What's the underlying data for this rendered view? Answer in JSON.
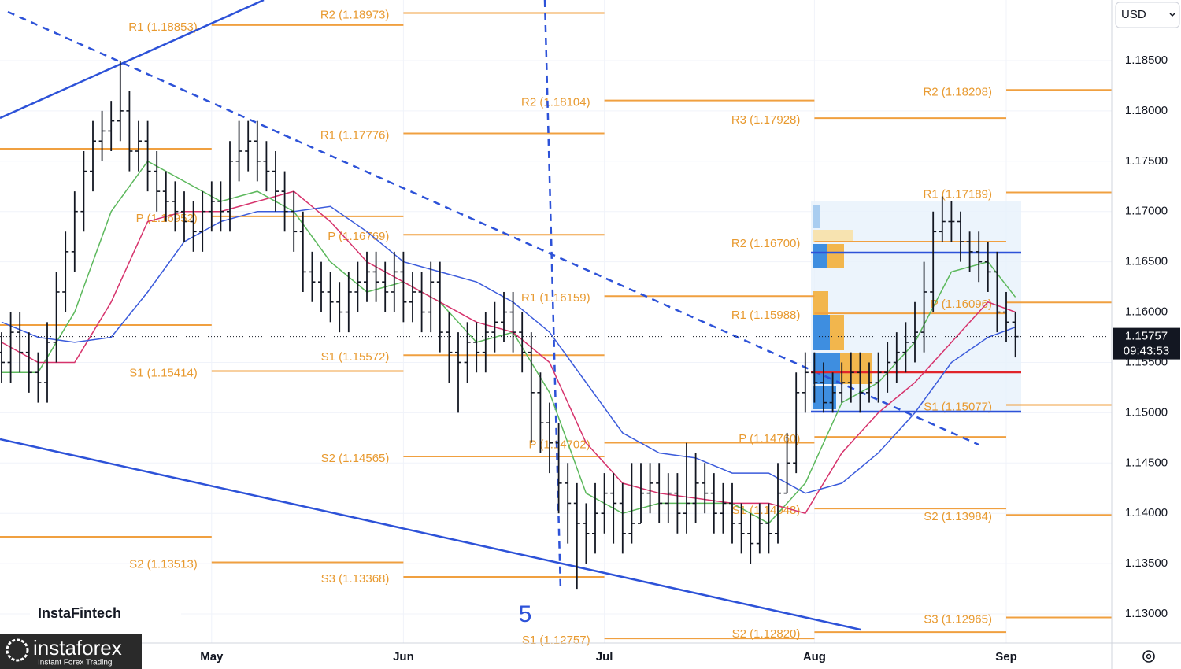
{
  "header": {
    "currency": "USD"
  },
  "branding": {
    "watermark": "InstaFintech",
    "logo": "instaforex",
    "tagline": "Instant Forex Trading"
  },
  "chart_data": {
    "type": "ohlc",
    "categories": [
      null,
      null,
      null,
      null,
      null,
      null,
      null,
      null,
      null,
      null,
      null,
      null,
      null,
      null,
      null,
      null,
      null,
      null,
      null,
      null,
      null,
      null,
      null,
      "May",
      null,
      null,
      null,
      null,
      null,
      null,
      null,
      null,
      null,
      null,
      null,
      null,
      null,
      null,
      null,
      null,
      null,
      null,
      null,
      null,
      "Jun",
      null,
      null,
      null,
      null,
      null,
      null,
      null,
      null,
      null,
      null,
      null,
      null,
      null,
      null,
      null,
      null,
      null,
      null,
      null,
      null,
      null,
      "Jul",
      null,
      null,
      null,
      null,
      null,
      null,
      null,
      null,
      null,
      null,
      null,
      null,
      null,
      null,
      null,
      null,
      null,
      null,
      null,
      null,
      null,
      null,
      "Aug",
      null,
      null,
      null,
      null,
      null,
      null,
      null,
      null,
      null,
      null,
      null,
      null,
      null,
      null,
      null,
      null,
      null,
      null,
      null,
      null,
      "Sep",
      null
    ],
    "open": [
      1.156,
      1.155,
      1.158,
      1.156,
      1.154,
      1.153,
      1.157,
      1.162,
      1.166,
      1.17,
      1.174,
      1.177,
      1.178,
      1.179,
      1.18,
      1.176,
      1.177,
      1.174,
      1.172,
      1.171,
      1.17,
      1.169,
      1.168,
      1.17,
      1.171,
      1.17,
      1.175,
      1.176,
      1.177,
      1.175,
      1.174,
      1.172,
      1.17,
      1.168,
      1.164,
      1.163,
      1.162,
      1.161,
      1.16,
      1.162,
      1.163,
      1.164,
      1.163,
      1.162,
      1.164,
      1.161,
      1.162,
      1.16,
      1.163,
      1.158,
      1.156,
      1.155,
      1.157,
      1.156,
      1.158,
      1.159,
      1.16,
      1.158,
      1.156,
      1.152,
      1.149,
      1.147,
      1.143,
      1.141,
      1.139,
      1.138,
      1.14,
      1.142,
      1.141,
      1.138,
      1.139,
      1.142,
      1.143,
      1.141,
      1.142,
      1.14,
      1.141,
      1.143,
      1.142,
      1.14,
      1.141,
      1.139,
      1.138,
      1.137,
      1.139,
      1.138,
      1.142,
      1.145,
      1.152,
      1.154,
      1.153,
      1.151,
      1.152,
      1.153,
      1.154,
      1.152,
      1.153,
      1.154,
      1.155,
      1.156,
      1.157,
      1.158,
      1.162,
      1.168,
      1.169,
      1.169,
      1.167,
      1.166,
      1.165,
      1.164,
      1.16,
      1.159
    ],
    "high": [
      1.158,
      1.16,
      1.16,
      1.158,
      1.156,
      1.159,
      1.164,
      1.168,
      1.172,
      1.176,
      1.179,
      1.18,
      1.181,
      1.185,
      1.182,
      1.179,
      1.179,
      1.176,
      1.174,
      1.173,
      1.172,
      1.171,
      1.172,
      1.173,
      1.173,
      1.177,
      1.179,
      1.179,
      1.179,
      1.177,
      1.176,
      1.174,
      1.172,
      1.17,
      1.166,
      1.165,
      1.164,
      1.163,
      1.164,
      1.165,
      1.166,
      1.166,
      1.165,
      1.166,
      1.166,
      1.164,
      1.164,
      1.165,
      1.165,
      1.16,
      1.158,
      1.159,
      1.159,
      1.16,
      1.161,
      1.162,
      1.162,
      1.16,
      1.158,
      1.154,
      1.151,
      1.149,
      1.145,
      1.143,
      1.141,
      1.143,
      1.144,
      1.144,
      1.143,
      1.145,
      1.145,
      1.145,
      1.145,
      1.144,
      1.144,
      1.147,
      1.146,
      1.145,
      1.144,
      1.143,
      1.143,
      1.141,
      1.14,
      1.141,
      1.141,
      1.145,
      1.148,
      1.154,
      1.156,
      1.156,
      1.155,
      1.154,
      1.155,
      1.156,
      1.156,
      1.155,
      1.156,
      1.157,
      1.158,
      1.159,
      1.161,
      1.165,
      1.17,
      1.1715,
      1.171,
      1.17,
      1.168,
      1.168,
      1.167,
      1.166,
      1.162,
      1.16
    ],
    "low": [
      1.153,
      1.153,
      1.154,
      1.152,
      1.151,
      1.151,
      1.155,
      1.16,
      1.164,
      1.168,
      1.172,
      1.175,
      1.176,
      1.177,
      1.174,
      1.174,
      1.172,
      1.17,
      1.169,
      1.168,
      1.167,
      1.166,
      1.166,
      1.168,
      1.168,
      1.168,
      1.173,
      1.174,
      1.173,
      1.172,
      1.17,
      1.168,
      1.166,
      1.162,
      1.161,
      1.16,
      1.159,
      1.158,
      1.158,
      1.16,
      1.161,
      1.161,
      1.16,
      1.16,
      1.159,
      1.159,
      1.158,
      1.158,
      1.156,
      1.153,
      1.15,
      1.153,
      1.154,
      1.154,
      1.156,
      1.157,
      1.156,
      1.154,
      1.147,
      1.146,
      1.144,
      1.14,
      1.137,
      1.1325,
      1.135,
      1.136,
      1.138,
      1.137,
      1.136,
      1.137,
      1.139,
      1.14,
      1.139,
      1.139,
      1.138,
      1.138,
      1.139,
      1.14,
      1.138,
      1.138,
      1.137,
      1.136,
      1.135,
      1.136,
      1.136,
      1.137,
      1.142,
      1.144,
      1.15,
      1.151,
      1.15,
      1.15,
      1.151,
      1.151,
      1.15,
      1.151,
      1.151,
      1.152,
      1.153,
      1.154,
      1.155,
      1.156,
      1.16,
      1.167,
      1.167,
      1.165,
      1.164,
      1.163,
      1.162,
      1.158,
      1.157,
      1.1555
    ],
    "close": [
      1.155,
      1.158,
      1.156,
      1.154,
      1.153,
      1.157,
      1.162,
      1.166,
      1.17,
      1.174,
      1.177,
      1.178,
      1.179,
      1.18,
      1.176,
      1.177,
      1.174,
      1.172,
      1.171,
      1.17,
      1.169,
      1.168,
      1.17,
      1.171,
      1.17,
      1.175,
      1.176,
      1.177,
      1.175,
      1.174,
      1.172,
      1.17,
      1.168,
      1.164,
      1.163,
      1.162,
      1.161,
      1.16,
      1.162,
      1.163,
      1.164,
      1.163,
      1.162,
      1.164,
      1.161,
      1.162,
      1.16,
      1.163,
      1.158,
      1.156,
      1.155,
      1.157,
      1.156,
      1.158,
      1.159,
      1.16,
      1.158,
      1.156,
      1.152,
      1.149,
      1.147,
      1.143,
      1.141,
      1.139,
      1.138,
      1.14,
      1.142,
      1.141,
      1.138,
      1.139,
      1.142,
      1.143,
      1.141,
      1.142,
      1.14,
      1.141,
      1.143,
      1.142,
      1.14,
      1.141,
      1.139,
      1.138,
      1.137,
      1.139,
      1.138,
      1.142,
      1.145,
      1.152,
      1.154,
      1.153,
      1.151,
      1.152,
      1.153,
      1.154,
      1.152,
      1.153,
      1.154,
      1.155,
      1.156,
      1.157,
      1.158,
      1.162,
      1.168,
      1.169,
      1.169,
      1.167,
      1.166,
      1.165,
      1.164,
      1.16,
      1.159,
      1.15757
    ],
    "bar_color": "#131722",
    "countdown": "09:43:53",
    "ma_x": [
      0,
      4,
      8,
      12,
      16,
      20,
      24,
      28,
      32,
      36,
      40,
      44,
      48,
      52,
      56,
      60,
      64,
      68,
      72,
      76,
      80,
      84,
      88,
      92,
      96,
      100,
      104,
      108,
      111
    ],
    "moving_averages": [
      {
        "color": "#5cb85c",
        "values": [
          1.154,
          1.154,
          1.16,
          1.17,
          1.175,
          1.173,
          1.171,
          1.172,
          1.17,
          1.165,
          1.162,
          1.163,
          1.161,
          1.157,
          1.158,
          1.152,
          1.142,
          1.14,
          1.141,
          1.141,
          1.141,
          1.139,
          1.143,
          1.151,
          1.153,
          1.157,
          1.164,
          1.165,
          1.1615
        ]
      },
      {
        "color": "#d6336c",
        "values": [
          1.157,
          1.155,
          1.155,
          1.161,
          1.169,
          1.17,
          1.17,
          1.171,
          1.172,
          1.169,
          1.165,
          1.163,
          1.161,
          1.159,
          1.158,
          1.155,
          1.147,
          1.143,
          1.142,
          1.1415,
          1.141,
          1.141,
          1.14,
          1.146,
          1.15,
          1.153,
          1.157,
          1.161,
          1.16
        ]
      },
      {
        "color": "#3b5bdb",
        "values": [
          1.159,
          1.1575,
          1.157,
          1.1575,
          1.162,
          1.167,
          1.169,
          1.17,
          1.17,
          1.1705,
          1.168,
          1.165,
          1.164,
          1.163,
          1.161,
          1.158,
          1.153,
          1.148,
          1.146,
          1.1455,
          1.144,
          1.144,
          1.142,
          1.143,
          1.146,
          1.15,
          1.155,
          1.1575,
          1.1585
        ]
      }
    ],
    "pivot_color": "#f0a040",
    "pivot_periods": [
      {
        "levels": [
          {
            "value": 1.17624
          },
          {
            "value": 1.15871
          },
          {
            "value": 1.13767
          }
        ]
      },
      {
        "levels": [
          {
            "label": "R1 (1.18853)",
            "value": 1.18853
          },
          {
            "label": "P (1.16952)",
            "value": 1.16952
          },
          {
            "label": "S1 (1.15414)",
            "value": 1.15414
          },
          {
            "label": "S2 (1.13513)",
            "value": 1.13513
          }
        ]
      },
      {
        "levels": [
          {
            "label": "R2 (1.18973)",
            "value": 1.18973
          },
          {
            "label": "R1 (1.17776)",
            "value": 1.17776
          },
          {
            "label": "P (1.16769)",
            "value": 1.16769
          },
          {
            "label": "S1 (1.15572)",
            "value": 1.15572
          },
          {
            "label": "S2 (1.14565)",
            "value": 1.14565
          },
          {
            "label": "S3 (1.13368)",
            "value": 1.13368
          }
        ]
      },
      {
        "levels": [
          {
            "label": "R2 (1.18104)",
            "value": 1.18104
          },
          {
            "label": "R1 (1.16159)",
            "value": 1.16159
          },
          {
            "label": "P (1.14702)",
            "value": 1.14702
          },
          {
            "label": "S1 (1.12757)",
            "value": 1.12757
          }
        ]
      },
      {
        "levels": [
          {
            "label": "R3 (1.17928)",
            "value": 1.17928
          },
          {
            "label": "R2 (1.16700)",
            "value": 1.167
          },
          {
            "label": "R1 (1.15988)",
            "value": 1.15988
          },
          {
            "label": "P (1.14760)",
            "value": 1.1476
          },
          {
            "label": "S1 (1.14048)",
            "value": 1.14048
          },
          {
            "label": "S2 (1.12820)",
            "value": 1.1282
          }
        ]
      },
      {
        "levels": [
          {
            "label": "R2 (1.18208)",
            "value": 1.18208
          },
          {
            "label": "R1 (1.17189)",
            "value": 1.17189
          },
          {
            "label": "P (1.16096)",
            "value": 1.16096
          },
          {
            "label": "S1 (1.15077)",
            "value": 1.15077
          },
          {
            "label": "S2 (1.13984)",
            "value": 1.13984
          },
          {
            "label": "S3 (1.12965)",
            "value": 1.12965
          }
        ]
      }
    ],
    "wave_label": "5",
    "ylim": [
      1.12711,
      1.19102
    ],
    "yticks": [
      {
        "value": 1.13,
        "label": "1.13000"
      },
      {
        "value": 1.135,
        "label": "1.13500"
      },
      {
        "value": 1.14,
        "label": "1.14000"
      },
      {
        "value": 1.145,
        "label": "1.14500"
      },
      {
        "value": 1.15,
        "label": "1.15000"
      },
      {
        "value": 1.155,
        "label": "1.15500"
      },
      {
        "value": 1.16,
        "label": "1.16000"
      },
      {
        "value": 1.165,
        "label": "1.16500"
      },
      {
        "value": 1.17,
        "label": "1.17000"
      },
      {
        "value": 1.175,
        "label": "1.17500"
      },
      {
        "value": 1.18,
        "label": "1.18000"
      },
      {
        "value": 1.185,
        "label": "1.18500"
      }
    ],
    "grid": true
  }
}
